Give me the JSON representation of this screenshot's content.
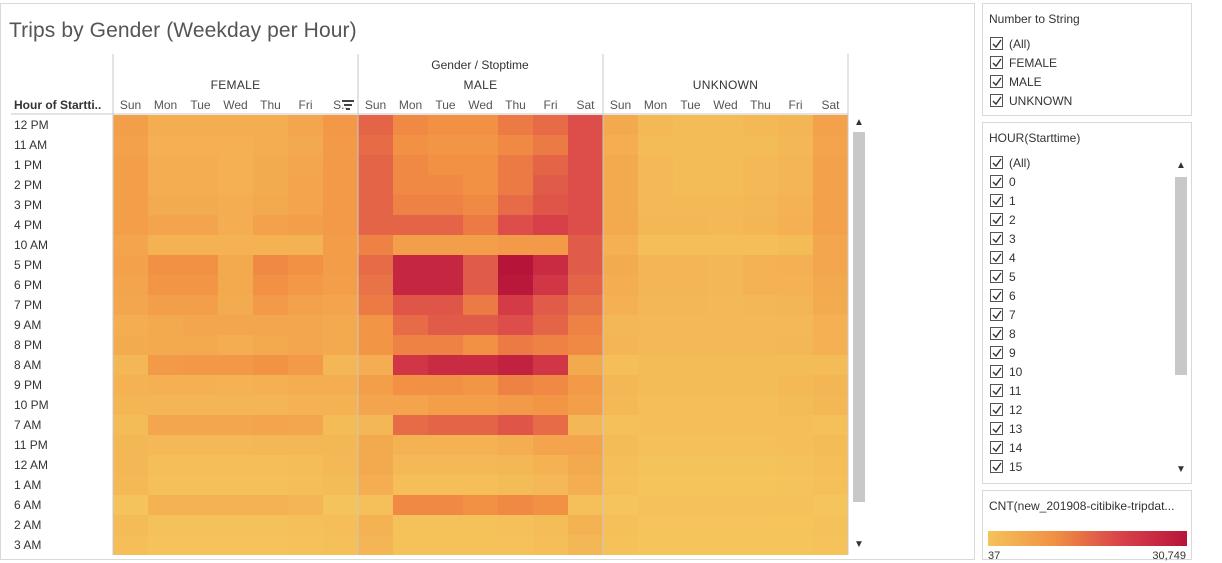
{
  "title": "Trips by Gender (Weekday per Hour)",
  "rows_header": "Hour of Startti..",
  "columns_header": "Gender / Stoptime",
  "accent_colors": {
    "low": "#f5c25b",
    "mid": "#f09143",
    "high": "#b7143a"
  },
  "icons": {
    "sort": "sort-descending-icon",
    "check": "checkmark-icon",
    "scroll_up": "chevron-up-icon",
    "scroll_down": "chevron-down-icon"
  },
  "chart_data": {
    "type": "heatmap",
    "title": "Trips by Gender (Weekday per Hour)",
    "genders": [
      "FEMALE",
      "MALE",
      "UNKNOWN"
    ],
    "day_labels": [
      [
        "Sun",
        "Mon",
        "Tue",
        "Wed",
        "Thu",
        "Fri",
        "S.."
      ],
      [
        "Sun",
        "Mon",
        "Tue",
        "Wed",
        "Thu",
        "Fri",
        "Sat"
      ],
      [
        "Sun",
        "Mon",
        "Tue",
        "Wed",
        "Thu",
        "Fri",
        "Sat"
      ]
    ],
    "hours": [
      "12 PM",
      "11 AM",
      "1 PM",
      "2 PM",
      "3 PM",
      "4 PM",
      "10 AM",
      "5 PM",
      "6 PM",
      "7 PM",
      "9 AM",
      "8 PM",
      "8 AM",
      "9 PM",
      "10 PM",
      "7 AM",
      "11 PM",
      "12 AM",
      "1 AM",
      "6 AM",
      "2 AM",
      "3 AM"
    ],
    "color_range": [
      37,
      30749
    ],
    "values": {
      "FEMALE": [
        [
          8000,
          5000,
          5000,
          5000,
          5000,
          6500,
          9500
        ],
        [
          7500,
          4500,
          4500,
          4500,
          5000,
          6000,
          9000
        ],
        [
          8000,
          5000,
          5000,
          4500,
          5500,
          6500,
          9000
        ],
        [
          8000,
          5000,
          5000,
          4500,
          5500,
          7000,
          9000
        ],
        [
          8000,
          5500,
          5500,
          5000,
          6000,
          7000,
          9000
        ],
        [
          8000,
          7000,
          7000,
          5000,
          7500,
          8000,
          9000
        ],
        [
          7000,
          4000,
          4000,
          4000,
          4000,
          4000,
          8500
        ],
        [
          7500,
          11000,
          11000,
          6000,
          12000,
          11000,
          8500
        ],
        [
          7000,
          10000,
          10000,
          6000,
          11000,
          9500,
          8000
        ],
        [
          6500,
          8000,
          8000,
          5500,
          9000,
          7500,
          7000
        ],
        [
          5000,
          6000,
          6500,
          6500,
          6500,
          6500,
          6000
        ],
        [
          5500,
          6000,
          6000,
          5000,
          6000,
          6500,
          6000
        ],
        [
          3000,
          9000,
          9500,
          9500,
          10500,
          9000,
          3000
        ],
        [
          4000,
          4500,
          4500,
          4000,
          4500,
          5000,
          5000
        ],
        [
          3500,
          3500,
          3500,
          3500,
          3500,
          4000,
          4000
        ],
        [
          2000,
          6500,
          6500,
          6500,
          7000,
          6500,
          2000
        ],
        [
          3000,
          2500,
          2500,
          2500,
          3000,
          3000,
          3000
        ],
        [
          3000,
          1500,
          1500,
          1500,
          1500,
          1800,
          2500
        ],
        [
          2500,
          1200,
          1200,
          1200,
          1200,
          1500,
          2000
        ],
        [
          500,
          4000,
          4000,
          4000,
          4000,
          3500,
          500
        ],
        [
          2000,
          800,
          800,
          800,
          800,
          1000,
          1500
        ],
        [
          1500,
          600,
          600,
          600,
          600,
          800,
          1200
        ]
      ],
      "MALE": [
        [
          17000,
          12000,
          11000,
          11000,
          14000,
          16000,
          20000
        ],
        [
          16000,
          11000,
          10000,
          10000,
          12000,
          14000,
          20000
        ],
        [
          17000,
          12000,
          11000,
          11000,
          14000,
          17000,
          20000
        ],
        [
          17000,
          12000,
          12000,
          11000,
          14000,
          18000,
          20000
        ],
        [
          17000,
          13000,
          13000,
          12000,
          16000,
          19000,
          20000
        ],
        [
          17000,
          17000,
          17000,
          14000,
          20000,
          22000,
          20000
        ],
        [
          13000,
          8000,
          8000,
          8000,
          9000,
          9000,
          18000
        ],
        [
          16000,
          27000,
          27000,
          18000,
          30749,
          26000,
          18000
        ],
        [
          15000,
          27000,
          27000,
          18000,
          30000,
          24000,
          17000
        ],
        [
          14000,
          19000,
          19000,
          14000,
          23000,
          18000,
          15000
        ],
        [
          10000,
          16000,
          18000,
          18000,
          20000,
          17000,
          13000
        ],
        [
          10000,
          13000,
          13000,
          11000,
          14000,
          13000,
          12000
        ],
        [
          5000,
          24000,
          26000,
          26000,
          28000,
          24000,
          6000
        ],
        [
          8000,
          11000,
          11000,
          10000,
          13000,
          12000,
          9000
        ],
        [
          7000,
          7000,
          8000,
          8000,
          9000,
          10000,
          8000
        ],
        [
          3000,
          16000,
          17000,
          17000,
          19000,
          16000,
          3000
        ],
        [
          6000,
          4000,
          4000,
          4000,
          5000,
          7000,
          7000
        ],
        [
          6000,
          2500,
          2500,
          2500,
          3000,
          4000,
          6000
        ],
        [
          5000,
          1500,
          1500,
          1500,
          2000,
          2500,
          5000
        ],
        [
          1000,
          12000,
          12000,
          11000,
          12000,
          11000,
          1000
        ],
        [
          4000,
          900,
          900,
          900,
          1200,
          1800,
          4000
        ],
        [
          3500,
          700,
          700,
          700,
          900,
          1500,
          3000
        ]
      ],
      "UNKNOWN": [
        [
          6000,
          2500,
          2000,
          2000,
          2500,
          3500,
          7500
        ],
        [
          5000,
          2000,
          2000,
          2000,
          2000,
          3000,
          7000
        ],
        [
          6000,
          2500,
          2000,
          2000,
          2500,
          3500,
          7500
        ],
        [
          6000,
          2500,
          2000,
          2000,
          2500,
          3500,
          7500
        ],
        [
          6000,
          2500,
          2500,
          2500,
          3000,
          4000,
          7500
        ],
        [
          6000,
          3000,
          3000,
          2500,
          3500,
          4500,
          7500
        ],
        [
          4500,
          1500,
          1500,
          1500,
          1500,
          2000,
          6500
        ],
        [
          5500,
          3500,
          3500,
          3000,
          4000,
          4500,
          6500
        ],
        [
          5000,
          3500,
          3500,
          3000,
          4000,
          4000,
          6000
        ],
        [
          4500,
          3000,
          3000,
          2500,
          3000,
          3500,
          5500
        ],
        [
          3000,
          2500,
          2500,
          2500,
          2500,
          2500,
          4500
        ],
        [
          3500,
          2500,
          2500,
          2500,
          2500,
          3000,
          4500
        ],
        [
          1500,
          2000,
          2000,
          2000,
          2000,
          2000,
          2000
        ],
        [
          3000,
          2000,
          2000,
          2000,
          2000,
          2500,
          3500
        ],
        [
          2500,
          1500,
          1500,
          1500,
          1500,
          2000,
          3000
        ],
        [
          1000,
          1500,
          1500,
          1500,
          1500,
          1500,
          1000
        ],
        [
          2000,
          1000,
          1000,
          1000,
          1000,
          1500,
          2000
        ],
        [
          1500,
          500,
          500,
          500,
          500,
          800,
          1500
        ],
        [
          1200,
          300,
          300,
          300,
          300,
          500,
          1200
        ],
        [
          200,
          800,
          800,
          800,
          800,
          800,
          200
        ],
        [
          1000,
          200,
          200,
          200,
          200,
          300,
          800
        ],
        [
          700,
          100,
          100,
          100,
          100,
          200,
          600
        ]
      ]
    }
  },
  "filters": {
    "number_to_string": {
      "title": "Number to String",
      "items": [
        "(All)",
        "FEMALE",
        "MALE",
        "UNKNOWN"
      ]
    },
    "hour": {
      "title": "HOUR(Starttime)",
      "items": [
        "(All)",
        "0",
        "1",
        "2",
        "3",
        "4",
        "5",
        "6",
        "7",
        "8",
        "9",
        "10",
        "11",
        "12",
        "13",
        "14",
        "15"
      ]
    }
  },
  "legend": {
    "title": "CNT(new_201908-citibike-tripdat...",
    "min": "37",
    "max": "30,749"
  }
}
